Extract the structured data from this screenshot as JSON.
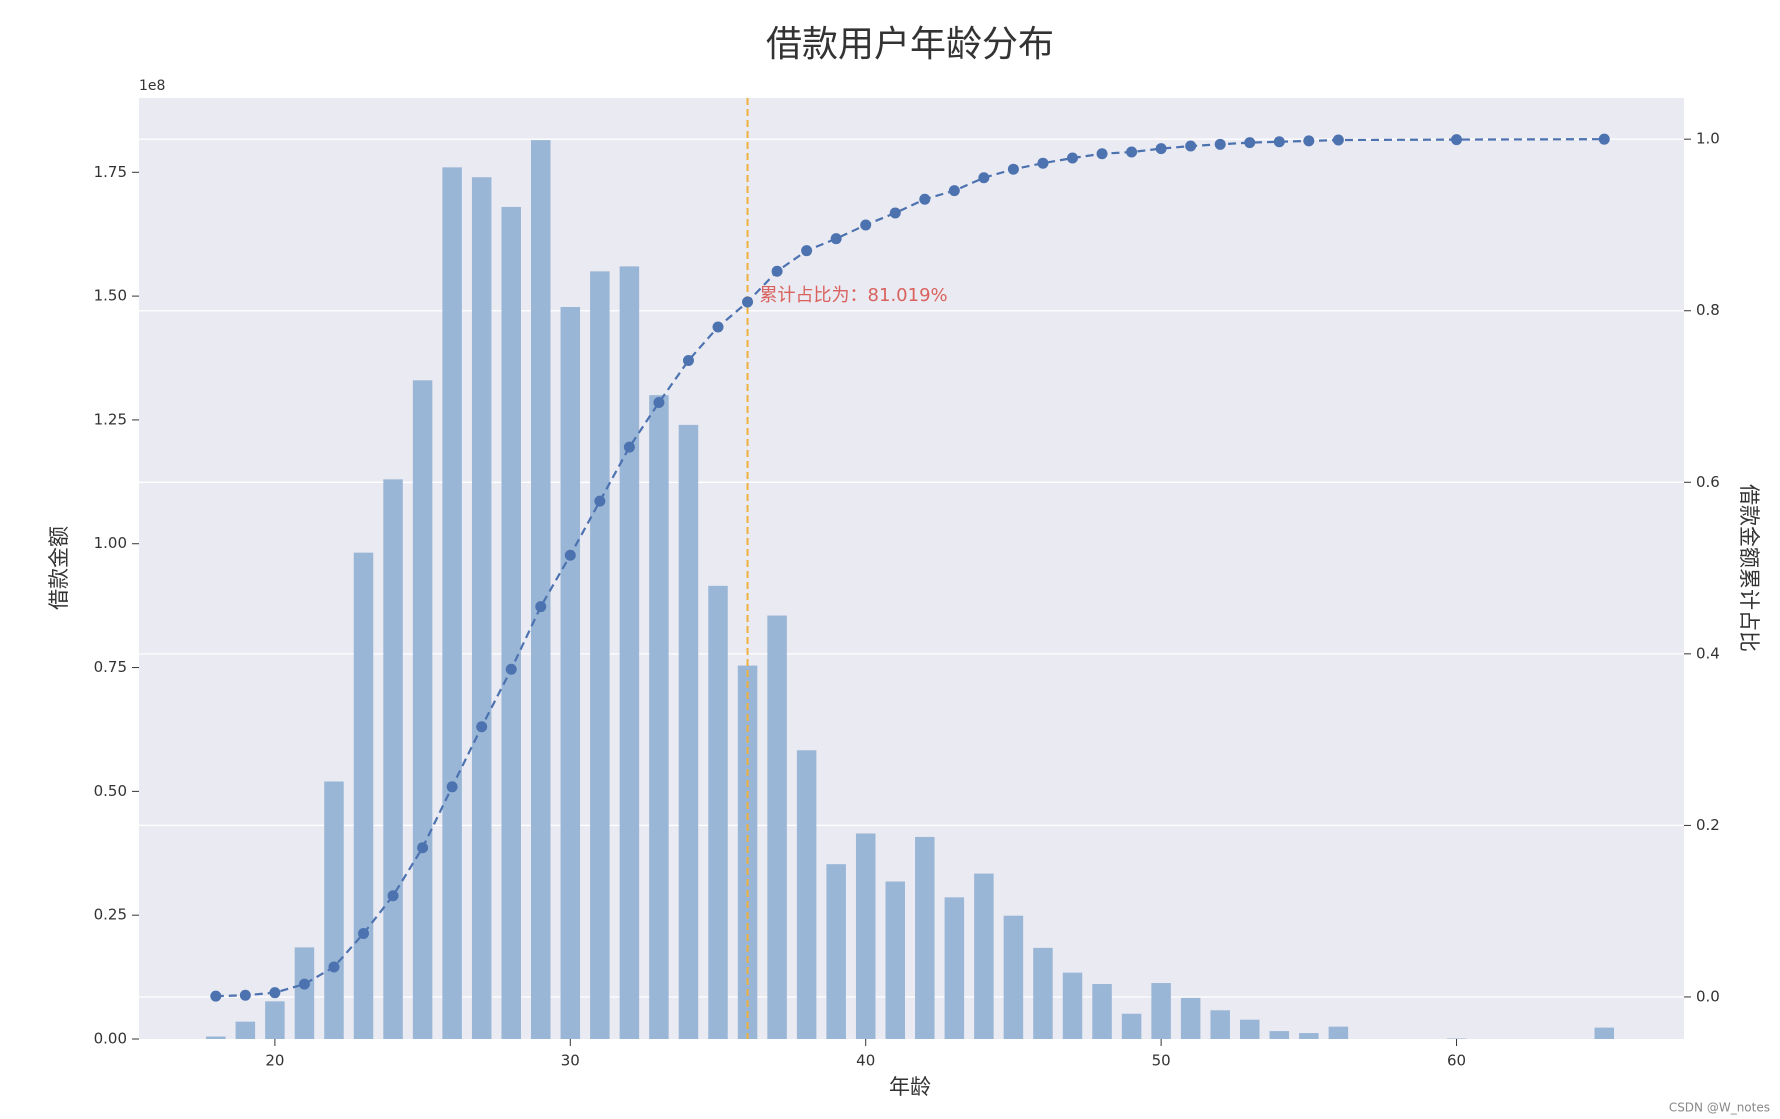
{
  "chart_data": {
    "type": "bar_line",
    "title": "借款用户年龄分布",
    "x_label": "年龄",
    "y_label": "借款金额",
    "y2_label": "借款金额累计占比",
    "y_offset_label": "1e8",
    "x": [
      18,
      19,
      20,
      21,
      22,
      23,
      24,
      25,
      26,
      27,
      28,
      29,
      30,
      31,
      32,
      33,
      34,
      35,
      36,
      37,
      38,
      39,
      40,
      41,
      42,
      43,
      44,
      45,
      46,
      47,
      48,
      49,
      50,
      51,
      52,
      53,
      54,
      55,
      56,
      60,
      65
    ],
    "series": [
      {
        "type": "bar",
        "axis": "y",
        "color": "#9ab6d6",
        "values": [
          0.005,
          0.035,
          0.076,
          0.185,
          0.52,
          0.982,
          1.13,
          1.33,
          1.76,
          1.74,
          1.68,
          1.815,
          1.478,
          1.55,
          1.56,
          1.3,
          1.24,
          0.915,
          0.754,
          0.855,
          0.583,
          0.353,
          0.415,
          0.318,
          0.408,
          0.286,
          0.334,
          0.249,
          0.184,
          0.134,
          0.111,
          0.051,
          0.113,
          0.083,
          0.058,
          0.039,
          0.016,
          0.012,
          0.025,
          0.001,
          0.023
        ]
      },
      {
        "type": "line",
        "axis": "y2",
        "color": "#4c72b0",
        "values": [
          0.001,
          0.002,
          0.005,
          0.015,
          0.035,
          0.074,
          0.118,
          0.174,
          0.245,
          0.315,
          0.382,
          0.455,
          0.515,
          0.578,
          0.641,
          0.693,
          0.742,
          0.781,
          0.81019,
          0.846,
          0.87,
          0.884,
          0.9,
          0.914,
          0.93,
          0.94,
          0.955,
          0.965,
          0.972,
          0.978,
          0.983,
          0.985,
          0.989,
          0.992,
          0.994,
          0.996,
          0.997,
          0.998,
          0.999,
          0.9995,
          1.0
        ]
      }
    ],
    "xlim": [
      15.4,
      67.7
    ],
    "xticks": [
      20,
      30,
      40,
      50,
      60
    ],
    "ylim": [
      0,
      1.9
    ],
    "yticks": [
      {
        "value": 0,
        "label": "0.00"
      },
      {
        "value": 0.25,
        "label": "0.25"
      },
      {
        "value": 0.5,
        "label": "0.50"
      },
      {
        "value": 0.75,
        "label": "0.75"
      },
      {
        "value": 1,
        "label": "1.00"
      },
      {
        "value": 1.25,
        "label": "1.25"
      },
      {
        "value": 1.5,
        "label": "1.50"
      },
      {
        "value": 1.75,
        "label": "1.75"
      }
    ],
    "y2lim": [
      -0.049,
      1.048
    ],
    "y2ticks": [
      {
        "value": 0,
        "label": "0.0"
      },
      {
        "value": 0.2,
        "label": "0.2"
      },
      {
        "value": 0.4,
        "label": "0.4"
      },
      {
        "value": 0.6,
        "label": "0.6"
      },
      {
        "value": 0.8,
        "label": "0.8"
      },
      {
        "value": 1,
        "label": "1.0"
      }
    ],
    "grid": true,
    "vline_x": 36,
    "vline_color": "#f0b03c",
    "annotation": "累计占比为：81.019%",
    "annotation_color": "#d9625e",
    "watermark": "CSDN @W_notes"
  }
}
